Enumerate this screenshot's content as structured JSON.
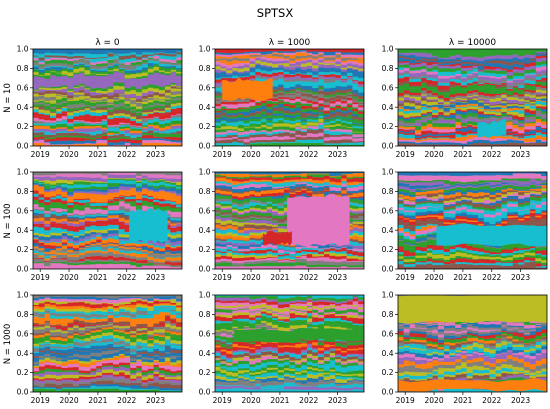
{
  "chart_data": {
    "type": "area",
    "title": "SPTSX",
    "subtype": "stacked-area small multiples (portfolio weights over time)",
    "column_labels": [
      "λ = 0",
      "λ = 1000",
      "λ = 10000"
    ],
    "row_labels": [
      "N = 10",
      "N = 100",
      "N = 1000"
    ],
    "x_ticks": [
      "2019",
      "2020",
      "2021",
      "2022",
      "2023"
    ],
    "x_range": [
      "2018-10",
      "2023-12"
    ],
    "y_ticks": [
      "0.0",
      "0.2",
      "0.4",
      "0.6",
      "0.8",
      "1.0"
    ],
    "ylim": [
      0,
      1
    ],
    "grid": false,
    "legend": "none",
    "palette": [
      "#1f77b4",
      "#ff7f0e",
      "#2ca02c",
      "#d62728",
      "#9467bd",
      "#8c564b",
      "#e377c2",
      "#7f7f7f",
      "#bcbd22",
      "#17becf"
    ],
    "panels": [
      {
        "row": "N = 10",
        "col": "λ = 0",
        "dominant_assets": []
      },
      {
        "row": "N = 10",
        "col": "λ = 1000",
        "dominant_assets": [
          {
            "color": "#ff7f0e",
            "t_start": "2019-01",
            "t_end": "2020-10",
            "bottom": 0.48,
            "weight": 0.2
          }
        ]
      },
      {
        "row": "N = 10",
        "col": "λ = 10000",
        "dominant_assets": [
          {
            "color": "#17becf",
            "t_start": "2021-07",
            "t_end": "2022-07",
            "bottom": 0.1,
            "weight": 0.15
          }
        ]
      },
      {
        "row": "N = 100",
        "col": "λ = 0",
        "dominant_assets": [
          {
            "color": "#17becf",
            "t_start": "2022-02",
            "t_end": "2023-06",
            "bottom": 0.28,
            "weight": 0.32
          }
        ]
      },
      {
        "row": "N = 100",
        "col": "λ = 1000",
        "dominant_assets": [
          {
            "color": "#e377c2",
            "t_start": "2021-04",
            "t_end": "2023-06",
            "bottom": 0.25,
            "weight": 0.5
          },
          {
            "color": "#d62728",
            "t_start": "2020-06",
            "t_end": "2021-06",
            "bottom": 0.26,
            "weight": 0.12
          }
        ]
      },
      {
        "row": "N = 100",
        "col": "λ = 10000",
        "dominant_assets": [
          {
            "color": "#17becf",
            "t_start": "2020-02",
            "t_end": "2023-12",
            "bottom": 0.25,
            "weight": 0.2
          }
        ]
      },
      {
        "row": "N = 1000",
        "col": "λ = 0",
        "dominant_assets": []
      },
      {
        "row": "N = 1000",
        "col": "λ = 1000",
        "dominant_assets": [
          {
            "color": "#2ca02c",
            "t_start": "2019-06",
            "t_end": "2023-12",
            "bottom": 0.53,
            "weight": 0.12
          }
        ]
      },
      {
        "row": "N = 1000",
        "col": "λ = 10000",
        "dominant_assets": [
          {
            "color": "#bcbd22",
            "t_start": "2018-10",
            "t_end": "2023-12",
            "bottom": 0.72,
            "weight": 0.28
          },
          {
            "color": "#ff7f0e",
            "t_start": "2018-10",
            "t_end": "2023-12",
            "bottom": 0.02,
            "weight": 0.1
          }
        ]
      }
    ]
  }
}
